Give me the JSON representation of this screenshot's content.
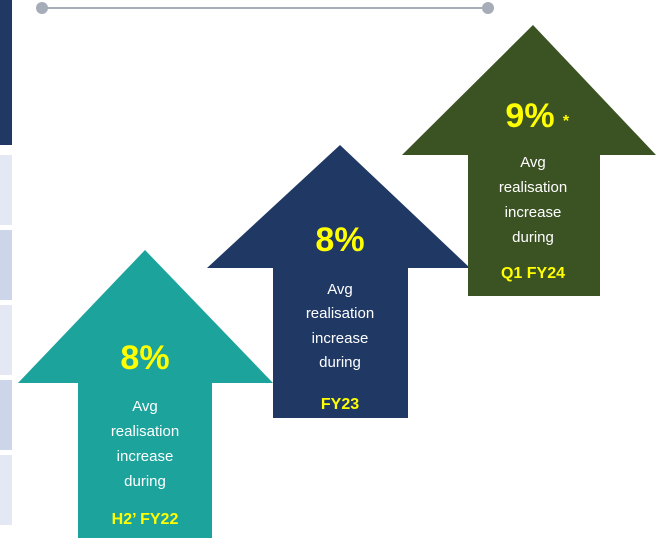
{
  "arrows": [
    {
      "value": "8%",
      "lines": [
        "Avg",
        "realisation",
        "increase",
        "during"
      ],
      "period": "H2’ FY22"
    },
    {
      "value": "8%",
      "lines": [
        "Avg",
        "realisation",
        "increase",
        "during"
      ],
      "period": "FY23"
    },
    {
      "value": "9%",
      "note": "*",
      "lines": [
        "Avg",
        "realisation",
        "increase",
        "during"
      ],
      "period": "Q1 FY24"
    }
  ]
}
